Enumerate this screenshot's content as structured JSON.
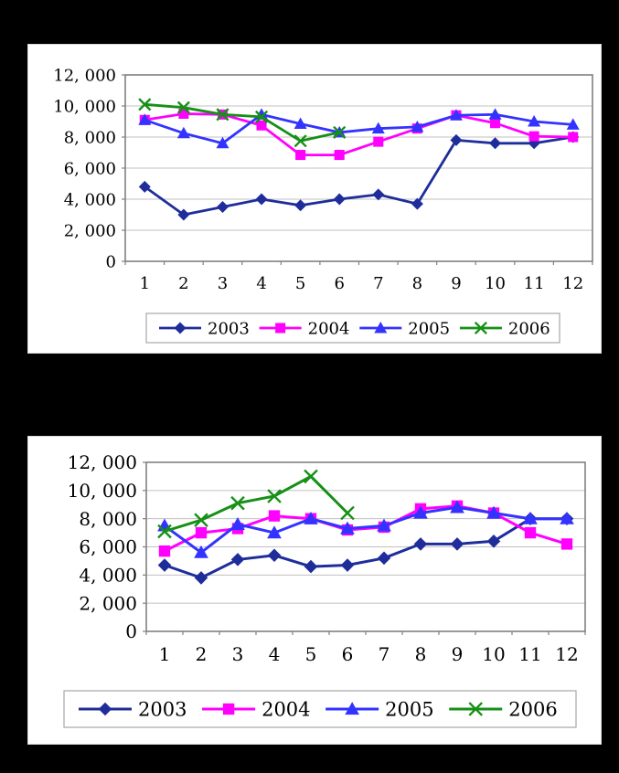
{
  "page": {
    "background_color": "#000000",
    "panel_color": "#ffffff",
    "grid_color": "#c0c0c0",
    "axis_color": "#808080",
    "legend_border_color": "#a6a6a6",
    "text_color": "#000000"
  },
  "chart_data": [
    {
      "id": "chart1",
      "type": "line",
      "title": "",
      "xlabel": "",
      "ylabel": "",
      "x": [
        1,
        2,
        3,
        4,
        5,
        6,
        7,
        8,
        9,
        10,
        11,
        12
      ],
      "x_tick_labels": [
        "1",
        "2",
        "3",
        "4",
        "5",
        "6",
        "7",
        "8",
        "9",
        "10",
        "11",
        "12"
      ],
      "y_tick_labels": [
        "12, 000",
        "10, 000",
        "8, 000",
        "6, 000",
        "4, 000",
        "2, 000",
        "0"
      ],
      "ylim": [
        0,
        12000
      ],
      "y_step": 2000,
      "grid": true,
      "legend_position": "bottom",
      "series": [
        {
          "name": "2003",
          "color": "#1f2d9b",
          "marker": "diamond",
          "values": [
            4800,
            3000,
            3500,
            4000,
            3600,
            4000,
            4300,
            3700,
            7800,
            7600,
            7600,
            8000
          ]
        },
        {
          "name": "2004",
          "color": "#ff00ff",
          "marker": "square",
          "values": [
            9100,
            9500,
            9450,
            8750,
            6850,
            6850,
            7700,
            8550,
            9400,
            8900,
            8050,
            8000
          ]
        },
        {
          "name": "2005",
          "color": "#3333ff",
          "marker": "triangle",
          "values": [
            9100,
            8250,
            7600,
            9450,
            8850,
            8300,
            8550,
            8650,
            9400,
            9450,
            9000,
            8800
          ]
        },
        {
          "name": "2006",
          "color": "#169016",
          "marker": "x",
          "values": [
            10100,
            9900,
            9450,
            9300,
            7750,
            8300,
            null,
            null,
            null,
            null,
            null,
            null
          ]
        }
      ]
    },
    {
      "id": "chart2",
      "type": "line",
      "title": "",
      "xlabel": "",
      "ylabel": "",
      "x": [
        1,
        2,
        3,
        4,
        5,
        6,
        7,
        8,
        9,
        10,
        11,
        12
      ],
      "x_tick_labels": [
        "1",
        "2",
        "3",
        "4",
        "5",
        "6",
        "7",
        "8",
        "9",
        "10",
        "11",
        "12"
      ],
      "y_tick_labels": [
        "12, 000",
        "10, 000",
        "8, 000",
        "6, 000",
        "4, 000",
        "2, 000",
        "0"
      ],
      "ylim": [
        0,
        12000
      ],
      "y_step": 2000,
      "grid": true,
      "legend_position": "bottom",
      "series": [
        {
          "name": "2003",
          "color": "#1f2d9b",
          "marker": "diamond",
          "values": [
            4700,
            3800,
            5100,
            5400,
            4600,
            4700,
            5200,
            6200,
            6200,
            6400,
            8000,
            8000
          ]
        },
        {
          "name": "2004",
          "color": "#ff00ff",
          "marker": "square",
          "values": [
            5700,
            7000,
            7300,
            8200,
            8000,
            7200,
            7400,
            8700,
            8900,
            8400,
            7000,
            6200
          ]
        },
        {
          "name": "2005",
          "color": "#3333ff",
          "marker": "triangle",
          "values": [
            7500,
            5600,
            7600,
            7000,
            8000,
            7300,
            7500,
            8400,
            8800,
            8400,
            8000,
            8000
          ]
        },
        {
          "name": "2006",
          "color": "#169016",
          "marker": "x",
          "values": [
            7100,
            7900,
            9100,
            9600,
            11000,
            8400,
            null,
            null,
            null,
            null,
            null,
            null
          ]
        }
      ]
    }
  ]
}
